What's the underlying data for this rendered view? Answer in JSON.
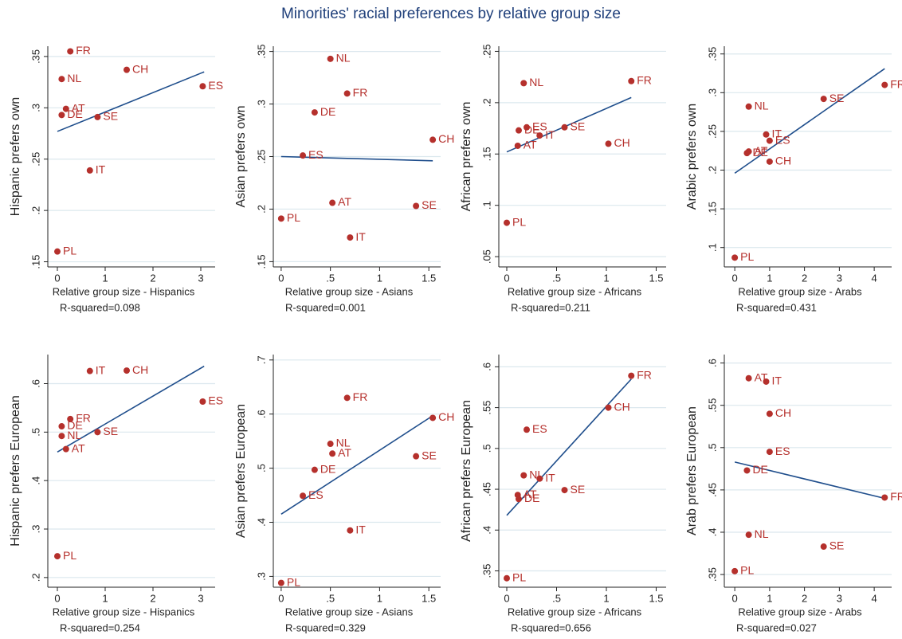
{
  "title": "Minorities' racial preferences by relative group size",
  "chart_data": [
    {
      "type": "scatter",
      "ylabel": "Hispanic prefers own",
      "xlabel": "Relative group size - Hispanics",
      "note": "R-squared=0.098",
      "labels": [
        "FR",
        "CH",
        "ES",
        "NL",
        "AT",
        "DE",
        "SE",
        "IT",
        "PL"
      ],
      "x": [
        0.27,
        1.45,
        3.04,
        0.09,
        0.18,
        0.09,
        0.84,
        0.68,
        0
      ],
      "values": [
        0.355,
        0.337,
        0.321,
        0.328,
        0.299,
        0.293,
        0.291,
        0.239,
        0.16
      ],
      "fit_x": [
        0,
        3.07
      ],
      "fit_y": [
        0.277,
        0.335
      ],
      "xlim": [
        -0.2,
        3.3
      ],
      "ylim": [
        0.145,
        0.36
      ],
      "xticks": [
        0,
        1,
        2,
        3
      ],
      "yticks": [
        {
          "value": 0.15,
          "label": ".15"
        },
        {
          "value": 0.2,
          "label": ".2"
        },
        {
          "value": 0.25,
          "label": ".25"
        },
        {
          "value": 0.3,
          "label": ".3"
        },
        {
          "value": 0.35,
          "label": ".35"
        }
      ],
      "grid": true,
      "color": "#b5302c",
      "fit_color": "#1f4e8c"
    },
    {
      "type": "scatter",
      "ylabel": "Asian prefers own",
      "xlabel": "Relative group size - Asians",
      "note": "R-squared=0.001",
      "labels": [
        "NL",
        "FR",
        "DE",
        "CH",
        "ES",
        "AT",
        "SE",
        "PL",
        "IT"
      ],
      "x": [
        0.5,
        0.67,
        0.34,
        1.54,
        0.22,
        0.52,
        1.37,
        0,
        0.7
      ],
      "values": [
        0.343,
        0.31,
        0.292,
        0.266,
        0.251,
        0.206,
        0.203,
        0.191,
        0.173
      ],
      "fit_x": [
        0,
        1.54
      ],
      "fit_y": [
        0.25,
        0.246
      ],
      "xlim": [
        -0.08,
        1.62
      ],
      "ylim": [
        0.145,
        0.355
      ],
      "xticks": [
        0,
        {
          "value": 0.5,
          "label": ".5"
        },
        1,
        1.5
      ],
      "yticks": [
        {
          "value": 0.15,
          "label": ".15"
        },
        {
          "value": 0.2,
          "label": ".2"
        },
        {
          "value": 0.25,
          "label": ".25"
        },
        {
          "value": 0.3,
          "label": ".3"
        },
        {
          "value": 0.35,
          "label": ".35"
        }
      ],
      "grid": true,
      "color": "#b5302c",
      "fit_color": "#1f4e8c"
    },
    {
      "type": "scatter",
      "ylabel": "African prefers own",
      "xlabel": "Relative group size - Africans",
      "note": "R-squared=0.211",
      "labels": [
        "NL",
        "FR",
        "DE",
        "ES",
        "SE",
        "AT",
        "IT",
        "CH",
        "PL"
      ],
      "x": [
        0.17,
        1.25,
        0.12,
        0.2,
        0.58,
        0.11,
        0.33,
        1.02,
        0
      ],
      "values": [
        0.219,
        0.221,
        0.173,
        0.176,
        0.176,
        0.158,
        0.168,
        0.16,
        0.083
      ],
      "fit_x": [
        0,
        1.25
      ],
      "fit_y": [
        0.152,
        0.205
      ],
      "xlim": [
        -0.08,
        1.6
      ],
      "ylim": [
        0.04,
        0.255
      ],
      "xticks": [
        0,
        {
          "value": 0.5,
          "label": ".5"
        },
        1,
        1.5
      ],
      "yticks": [
        {
          "value": 0.05,
          "label": ".05"
        },
        {
          "value": 0.1,
          "label": ".1"
        },
        {
          "value": 0.15,
          "label": ".15"
        },
        {
          "value": 0.2,
          "label": ".2"
        },
        {
          "value": 0.25,
          "label": ".25"
        }
      ],
      "grid": true,
      "color": "#b5302c",
      "fit_color": "#1f4e8c"
    },
    {
      "type": "scatter",
      "ylabel": "Arabic prefers own",
      "xlabel": "Relative group size - Arabs",
      "note": "R-squared=0.431",
      "labels": [
        "FR",
        "SE",
        "NL",
        "IT",
        "ES",
        "DE",
        "AT",
        "CH",
        "PL"
      ],
      "x": [
        4.3,
        2.55,
        0.4,
        0.9,
        1.0,
        0.35,
        0.4,
        1.0,
        0
      ],
      "values": [
        0.31,
        0.292,
        0.282,
        0.246,
        0.238,
        0.222,
        0.224,
        0.211,
        0.087
      ],
      "fit_x": [
        0,
        4.3
      ],
      "fit_y": [
        0.196,
        0.331
      ],
      "xlim": [
        -0.3,
        4.5
      ],
      "ylim": [
        0.075,
        0.36
      ],
      "xticks": [
        0,
        1,
        2,
        3,
        4
      ],
      "yticks": [
        {
          "value": 0.1,
          "label": ".1"
        },
        {
          "value": 0.15,
          "label": ".15"
        },
        {
          "value": 0.2,
          "label": ".2"
        },
        {
          "value": 0.25,
          "label": ".25"
        },
        {
          "value": 0.3,
          "label": ".3"
        },
        {
          "value": 0.35,
          "label": ".35"
        }
      ],
      "grid": true,
      "color": "#b5302c",
      "fit_color": "#1f4e8c"
    },
    {
      "type": "scatter",
      "ylabel": "Hispanic prefers European",
      "xlabel": "Relative group size - Hispanics",
      "note": "R-squared=0.254",
      "labels": [
        "IT",
        "CH",
        "ES",
        "FR",
        "DE",
        "NL",
        "SE",
        "AT",
        "PL"
      ],
      "x": [
        0.68,
        1.45,
        3.04,
        0.27,
        0.09,
        0.09,
        0.84,
        0.18,
        0
      ],
      "values": [
        0.626,
        0.627,
        0.563,
        0.527,
        0.512,
        0.492,
        0.5,
        0.465,
        0.244
      ],
      "fit_x": [
        0,
        3.07
      ],
      "fit_y": [
        0.459,
        0.636
      ],
      "xlim": [
        -0.2,
        3.3
      ],
      "ylim": [
        0.18,
        0.66
      ],
      "xticks": [
        0,
        1,
        2,
        3
      ],
      "yticks": [
        {
          "value": 0.2,
          "label": ".2"
        },
        {
          "value": 0.3,
          "label": ".3"
        },
        {
          "value": 0.4,
          "label": ".4"
        },
        {
          "value": 0.5,
          "label": ".5"
        },
        {
          "value": 0.6,
          "label": ".6"
        }
      ],
      "grid": true,
      "color": "#b5302c",
      "fit_color": "#1f4e8c"
    },
    {
      "type": "scatter",
      "ylabel": "Asian prefers European",
      "xlabel": "Relative group size - Asians",
      "note": "R-squared=0.329",
      "labels": [
        "FR",
        "CH",
        "NL",
        "AT",
        "SE",
        "DE",
        "ES",
        "IT",
        "PL"
      ],
      "x": [
        0.67,
        1.54,
        0.5,
        0.52,
        1.37,
        0.34,
        0.22,
        0.7,
        0
      ],
      "values": [
        0.63,
        0.593,
        0.545,
        0.527,
        0.522,
        0.497,
        0.449,
        0.385,
        0.288
      ],
      "fit_x": [
        0,
        1.54
      ],
      "fit_y": [
        0.415,
        0.597
      ],
      "xlim": [
        -0.08,
        1.62
      ],
      "ylim": [
        0.28,
        0.71
      ],
      "xticks": [
        0,
        {
          "value": 0.5,
          "label": ".5"
        },
        1,
        1.5
      ],
      "yticks": [
        {
          "value": 0.3,
          "label": ".3"
        },
        {
          "value": 0.4,
          "label": ".4"
        },
        {
          "value": 0.5,
          "label": ".5"
        },
        {
          "value": 0.6,
          "label": ".6"
        },
        {
          "value": 0.7,
          "label": ".7"
        }
      ],
      "grid": true,
      "color": "#b5302c",
      "fit_color": "#1f4e8c"
    },
    {
      "type": "scatter",
      "ylabel": "African prefers European",
      "xlabel": "Relative group size - Africans",
      "note": "R-squared=0.656",
      "labels": [
        "FR",
        "CH",
        "ES",
        "NL",
        "IT",
        "SE",
        "AT",
        "DE",
        "PL"
      ],
      "x": [
        1.25,
        1.02,
        0.2,
        0.17,
        0.33,
        0.58,
        0.11,
        0.12,
        0
      ],
      "values": [
        0.589,
        0.55,
        0.523,
        0.467,
        0.463,
        0.449,
        0.443,
        0.438,
        0.341
      ],
      "fit_x": [
        0,
        1.25
      ],
      "fit_y": [
        0.418,
        0.585
      ],
      "xlim": [
        -0.08,
        1.6
      ],
      "ylim": [
        0.33,
        0.615
      ],
      "xticks": [
        0,
        {
          "value": 0.5,
          "label": ".5"
        },
        1,
        1.5
      ],
      "yticks": [
        {
          "value": 0.35,
          "label": ".35"
        },
        {
          "value": 0.4,
          "label": ".4"
        },
        {
          "value": 0.45,
          "label": ".45"
        },
        {
          "value": 0.5,
          "label": ".5"
        },
        {
          "value": 0.55,
          "label": ".55"
        },
        {
          "value": 0.6,
          "label": ".6"
        }
      ],
      "grid": true,
      "color": "#b5302c",
      "fit_color": "#1f4e8c"
    },
    {
      "type": "scatter",
      "ylabel": "Arab prefers European",
      "xlabel": "Relative group size - Arabs",
      "note": "R-squared=0.027",
      "labels": [
        "AT",
        "IT",
        "CH",
        "ES",
        "DE",
        "FR",
        "NL",
        "SE",
        "PL"
      ],
      "x": [
        0.4,
        0.9,
        1.0,
        1.0,
        0.35,
        4.3,
        0.4,
        2.55,
        0
      ],
      "values": [
        0.582,
        0.578,
        0.54,
        0.495,
        0.473,
        0.441,
        0.397,
        0.383,
        0.354
      ],
      "fit_x": [
        0,
        4.3
      ],
      "fit_y": [
        0.483,
        0.44
      ],
      "xlim": [
        -0.3,
        4.5
      ],
      "ylim": [
        0.335,
        0.61
      ],
      "xticks": [
        0,
        1,
        2,
        3,
        4
      ],
      "yticks": [
        {
          "value": 0.35,
          "label": ".35"
        },
        {
          "value": 0.4,
          "label": ".4"
        },
        {
          "value": 0.45,
          "label": ".45"
        },
        {
          "value": 0.5,
          "label": ".5"
        },
        {
          "value": 0.55,
          "label": ".55"
        },
        {
          "value": 0.6,
          "label": ".6"
        }
      ],
      "grid": true,
      "color": "#b5302c",
      "fit_color": "#1f4e8c"
    }
  ]
}
